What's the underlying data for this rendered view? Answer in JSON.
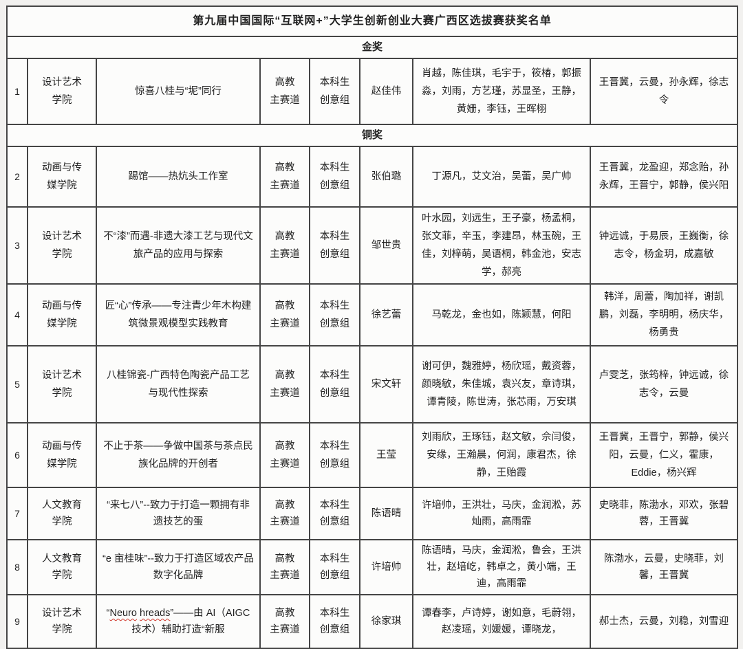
{
  "title": "第九届中国国际“互联网+”大学生创新创业大赛广西区选拔赛获奖名单",
  "sections": [
    {
      "label": "金奖"
    },
    {
      "label": "铜奖"
    }
  ],
  "rows": [
    {
      "no": "1",
      "college": "设计艺术\n学院",
      "project": "惊喜八桂与“坭”同行",
      "track": "高教\n主赛道",
      "group": "本科生\n创意组",
      "leader": "赵佳伟",
      "members": "肖越，陈佳琪，毛宇于，筱椿，郭振淼，刘雨，方艺瑾，苏显圣，王静，黄姗，李钰，王晖栩",
      "advisors": "王晋冀，云曼，孙永辉，徐志令"
    },
    {
      "no": "2",
      "college": "动画与传\n媒学院",
      "project": "踢馆——热炕头工作室",
      "track": "高教\n主赛道",
      "group": "本科生\n创意组",
      "leader": "张伯璐",
      "members": "丁源凡，艾文治，吴蕾，吴广帅",
      "advisors": "王晋冀，龙盈迎，郑念贻，孙永辉，王晋宁，郭静，侯兴阳"
    },
    {
      "no": "3",
      "college": "设计艺术\n学院",
      "project": "不“漆”而遇-非遗大漆工艺与现代文旅产品的应用与探索",
      "track": "高教\n主赛道",
      "group": "本科生\n创意组",
      "leader": "邹世贵",
      "members": "叶水园，刘远生，王子豪，杨孟桐，张文菲，辛玉，李建昂，林玉碗，王佳，刘梓萌，吴语桐，韩金池，安志学，郝亮",
      "advisors": "钟远诚，于易辰，王巍衡，徐志令，杨金玥，成嘉敏"
    },
    {
      "no": "4",
      "college": "动画与传\n媒学院",
      "project": "匠“心”传承——专注青少年木构建筑微景观模型实践教育",
      "track": "高教\n主赛道",
      "group": "本科生\n创意组",
      "leader": "徐艺蕾",
      "members": "马乾龙，金也如，陈颖慧，何阳",
      "advisors": "韩洋，周蕾，陶加祥，谢凯鹏，刘磊，李明明，杨庆华，杨勇贵"
    },
    {
      "no": "5",
      "college": "设计艺术\n学院",
      "project": "八桂锦瓷-广西特色陶瓷产品工艺与现代性探索",
      "track": "高教\n主赛道",
      "group": "本科生\n创意组",
      "leader": "宋文轩",
      "members": "谢可伊，魏雅婷，杨欣瑶，戴资蓉，颜晓敏，朱佳城，袁兴友，章诗琪，谭青陵，陈世涛，张芯雨，万安琪",
      "advisors": "卢雯芝，张筠梓，钟远诚，徐志令，云曼"
    },
    {
      "no": "6",
      "college": "动画与传\n媒学院",
      "project": "不止于茶——争做中国茶与茶点民族化品牌的开创者",
      "track": "高教\n主赛道",
      "group": "本科生\n创意组",
      "leader": "王莹",
      "members": "刘雨欣，王琢钰，赵文敏，佘闫俊，安缘，王瀚晨，何润，康君杰，徐静，王贻霞",
      "advisors": "王晋冀，王晋宁，郭静，侯兴阳，云曼，仁义，霍康，Eddie，杨兴辉"
    },
    {
      "no": "7",
      "college": "人文教育\n学院",
      "project": "“来七八”--致力于打造一颗拥有非遗技艺的蛋",
      "track": "高教\n主赛道",
      "group": "本科生\n创意组",
      "leader": "陈语晴",
      "members": "许培帅，王洪壮，马庆，金润淞，苏灿雨，高雨霏",
      "advisors": "史晓菲，陈渤水，邓欢，张碧蓉，王晋冀"
    },
    {
      "no": "8",
      "college": "人文教育\n学院",
      "project": "“e 亩桂味”--致力于打造区域农产品数字化品牌",
      "track": "高教\n主赛道",
      "group": "本科生\n创意组",
      "leader": "许培帅",
      "members": "陈语晴，马庆，金润淞，鲁会，王洪壮，赵培屹，韩卓之，黄小端，王迪，高雨霏",
      "advisors": "陈渤水，云曼，史晓菲，刘馨，王晋冀"
    },
    {
      "no": "9",
      "college": "设计艺术\n学院",
      "project": "“Neuro hreads”——由 AI（AIGC 技术）辅助打造“新服",
      "squiggle": [
        "Neuro",
        "hreads"
      ],
      "track": "高教\n主赛道",
      "group": "本科生\n创意组",
      "leader": "徐家琪",
      "members": "谭春李，卢诗婷，谢如意，毛蔚翎，赵凌瑶，刘媛媛，谭晓龙，",
      "advisors": "郝士杰，云曼，刘稳，刘雪迎"
    }
  ]
}
